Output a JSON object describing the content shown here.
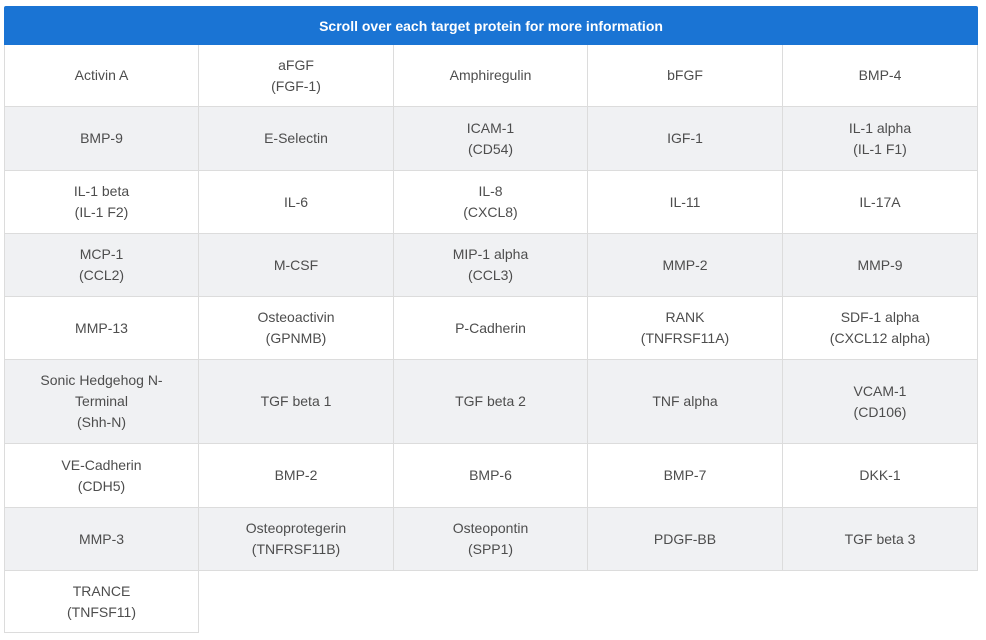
{
  "header": {
    "title": "Scroll over each target protein for more information"
  },
  "rows": [
    {
      "cells": [
        [
          "Activin A"
        ],
        [
          "aFGF",
          "(FGF-1)"
        ],
        [
          "Amphiregulin"
        ],
        [
          "bFGF"
        ],
        [
          "BMP-4"
        ]
      ]
    },
    {
      "cells": [
        [
          "BMP-9"
        ],
        [
          "E-Selectin"
        ],
        [
          "ICAM-1",
          "(CD54)"
        ],
        [
          "IGF-1"
        ],
        [
          "IL-1 alpha",
          "(IL-1 F1)"
        ]
      ]
    },
    {
      "cells": [
        [
          "IL-1 beta",
          "(IL-1 F2)"
        ],
        [
          "IL-6"
        ],
        [
          "IL-8",
          "(CXCL8)"
        ],
        [
          "IL-11"
        ],
        [
          "IL-17A"
        ]
      ]
    },
    {
      "cells": [
        [
          "MCP-1",
          "(CCL2)"
        ],
        [
          "M-CSF"
        ],
        [
          "MIP-1 alpha",
          "(CCL3)"
        ],
        [
          "MMP-2"
        ],
        [
          "MMP-9"
        ]
      ]
    },
    {
      "cells": [
        [
          "MMP-13"
        ],
        [
          "Osteoactivin",
          "(GPNMB)"
        ],
        [
          "P-Cadherin"
        ],
        [
          "RANK",
          "(TNFRSF11A)"
        ],
        [
          "SDF-1 alpha",
          "(CXCL12 alpha)"
        ]
      ]
    },
    {
      "cells": [
        [
          "Sonic Hedgehog N-",
          "Terminal",
          "(Shh-N)"
        ],
        [
          "TGF beta 1"
        ],
        [
          "TGF beta 2"
        ],
        [
          "TNF alpha"
        ],
        [
          "VCAM-1",
          "(CD106)"
        ]
      ]
    },
    {
      "cells": [
        [
          "VE-Cadherin",
          "(CDH5)"
        ],
        [
          "BMP-2"
        ],
        [
          "BMP-6"
        ],
        [
          "BMP-7"
        ],
        [
          "DKK-1"
        ]
      ]
    },
    {
      "cells": [
        [
          "MMP-3"
        ],
        [
          "Osteoprotegerin",
          "(TNFRSF11B)"
        ],
        [
          "Osteopontin",
          "(SPP1)"
        ],
        [
          "PDGF-BB"
        ],
        [
          "TGF beta 3"
        ]
      ]
    },
    {
      "cells": [
        [
          "TRANCE",
          "(TNFSF11)"
        ]
      ]
    }
  ],
  "colors": {
    "header_bg": "#1a74d4",
    "header_text": "#ffffff",
    "shaded_row": "#f0f1f3",
    "plain_row": "#ffffff",
    "cell_text": "#4d4d4d",
    "border": "#dcdcdc"
  }
}
